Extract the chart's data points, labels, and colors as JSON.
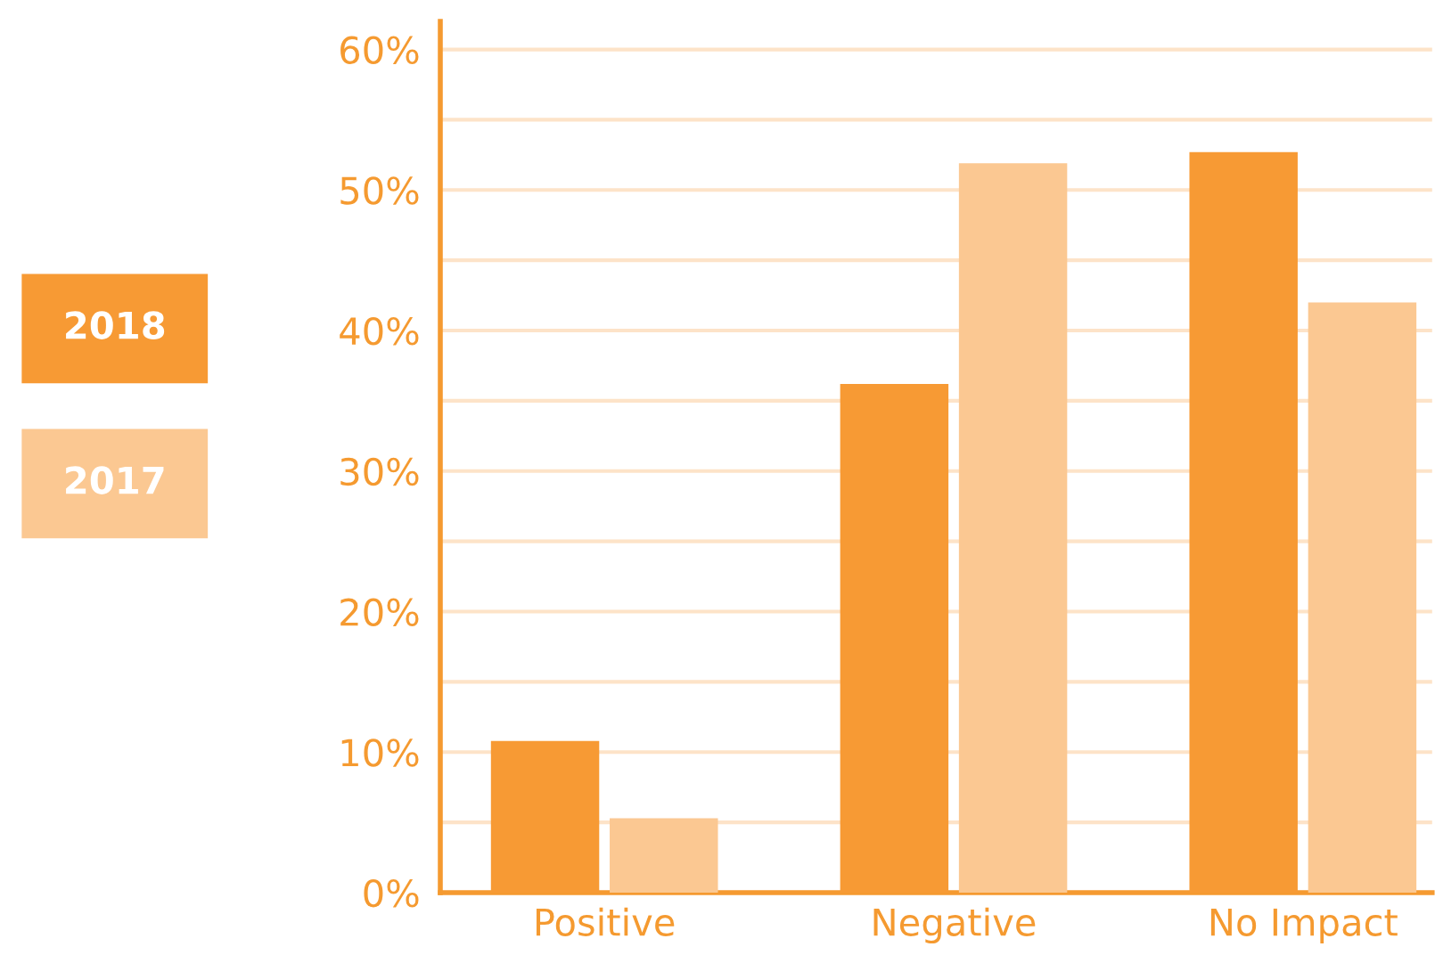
{
  "chart_data": {
    "type": "bar",
    "categories": [
      "Positive",
      "Negative",
      "No Impact"
    ],
    "series": [
      {
        "name": "2018",
        "color": "#f79a34",
        "values": [
          10.8,
          36.2,
          52.7
        ]
      },
      {
        "name": "2017",
        "color": "#fbc892",
        "values": [
          5.3,
          51.9,
          42.0
        ]
      }
    ],
    "ylim": [
      0,
      62
    ],
    "yticks": [
      {
        "value": 0,
        "label": "0%"
      },
      {
        "value": 5,
        "label": null
      },
      {
        "value": 10,
        "label": "10%"
      },
      {
        "value": 15,
        "label": null
      },
      {
        "value": 20,
        "label": "20%"
      },
      {
        "value": 25,
        "label": null
      },
      {
        "value": 30,
        "label": "30%"
      },
      {
        "value": 35,
        "label": null
      },
      {
        "value": 40,
        "label": "40%"
      },
      {
        "value": 45,
        "label": null
      },
      {
        "value": 50,
        "label": "50%"
      },
      {
        "value": 55,
        "label": null
      },
      {
        "value": 60,
        "label": "60%"
      }
    ],
    "grid": "y",
    "legend": "left"
  }
}
